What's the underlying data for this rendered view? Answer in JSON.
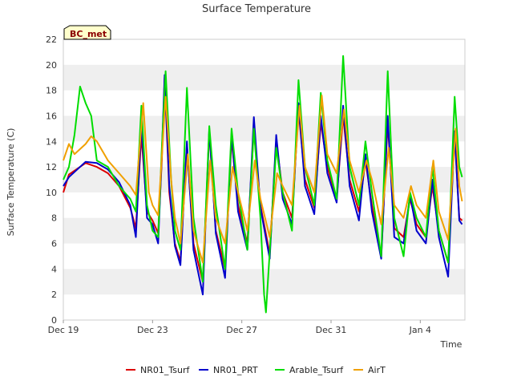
{
  "chart_data": {
    "type": "line",
    "title": "Surface Temperature",
    "xlabel": "Time",
    "ylabel": "Surface Temperature (C)",
    "badge": "BC_met",
    "ylim": [
      0,
      22
    ],
    "yticks": [
      0,
      2,
      4,
      6,
      8,
      10,
      12,
      14,
      16,
      18,
      20,
      22
    ],
    "xlim": [
      "2023-12-19",
      "2024-01-06"
    ],
    "xticks": [
      {
        "date": "2023-12-19",
        "label": "Dec 19"
      },
      {
        "date": "2023-12-23",
        "label": "Dec 23"
      },
      {
        "date": "2023-12-27",
        "label": "Dec 27"
      },
      {
        "date": "2023-12-31",
        "label": "Dec 31"
      },
      {
        "date": "2024-01-04",
        "label": "Jan 4"
      }
    ],
    "grid": "horizontal bands",
    "legend_position": "bottom",
    "colors": {
      "NR01_Tsurf": "#dd0000",
      "NR01_PRT": "#0000cc",
      "Arable_Tsurf": "#00dd00",
      "AirT": "#f0a000",
      "band": "#efefef",
      "badge_bg": "#ffffcc"
    },
    "series": [
      {
        "name": "NR01_Tsurf",
        "points": [
          [
            "2023-12-19T00:00",
            10.0
          ],
          [
            "2023-12-19T06:00",
            11.4
          ],
          [
            "2023-12-20T00:00",
            12.3
          ],
          [
            "2023-12-20T12:00",
            12.0
          ],
          [
            "2023-12-21T00:00",
            11.5
          ],
          [
            "2023-12-21T12:00",
            10.5
          ],
          [
            "2023-12-22T00:00",
            8.8
          ],
          [
            "2023-12-22T06:00",
            7.2
          ],
          [
            "2023-12-22T12:00",
            14.5
          ],
          [
            "2023-12-22T18:00",
            8.5
          ],
          [
            "2023-12-23T00:00",
            7.8
          ],
          [
            "2023-12-23T06:00",
            6.8
          ],
          [
            "2023-12-23T10:00",
            12.5
          ],
          [
            "2023-12-23T13:00",
            19.0
          ],
          [
            "2023-12-23T18:00",
            10.0
          ],
          [
            "2023-12-24T00:00",
            6.0
          ],
          [
            "2023-12-24T06:00",
            4.6
          ],
          [
            "2023-12-24T13:00",
            13.8
          ],
          [
            "2023-12-24T20:00",
            6.0
          ],
          [
            "2023-12-25T06:00",
            3.0
          ],
          [
            "2023-12-25T13:00",
            14.8
          ],
          [
            "2023-12-25T20:00",
            7.0
          ],
          [
            "2023-12-26T06:00",
            4.0
          ],
          [
            "2023-12-26T13:00",
            14.2
          ],
          [
            "2023-12-26T20:00",
            9.0
          ],
          [
            "2023-12-27T06:00",
            6.0
          ],
          [
            "2023-12-27T13:00",
            15.0
          ],
          [
            "2023-12-27T20:00",
            9.0
          ],
          [
            "2023-12-28T06:00",
            5.2
          ],
          [
            "2023-12-28T13:00",
            14.0
          ],
          [
            "2023-12-28T20:00",
            10.0
          ],
          [
            "2023-12-29T06:00",
            8.0
          ],
          [
            "2023-12-29T13:00",
            16.5
          ],
          [
            "2023-12-29T20:00",
            11.0
          ],
          [
            "2023-12-30T06:00",
            8.8
          ],
          [
            "2023-12-30T13:00",
            15.5
          ],
          [
            "2023-12-30T20:00",
            12.0
          ],
          [
            "2023-12-31T06:00",
            9.5
          ],
          [
            "2023-12-31T13:00",
            16.0
          ],
          [
            "2023-12-31T20:00",
            11.0
          ],
          [
            "2024-01-01T06:00",
            8.5
          ],
          [
            "2024-01-01T13:00",
            12.5
          ],
          [
            "2024-01-01T20:00",
            9.0
          ],
          [
            "2024-01-02T06:00",
            5.0
          ],
          [
            "2024-01-02T13:00",
            15.5
          ],
          [
            "2024-01-02T20:00",
            7.2
          ],
          [
            "2024-01-03T06:00",
            6.5
          ],
          [
            "2024-01-03T13:00",
            9.5
          ],
          [
            "2024-01-03T20:00",
            7.5
          ],
          [
            "2024-01-04T06:00",
            6.5
          ],
          [
            "2024-01-04T13:00",
            10.5
          ],
          [
            "2024-01-04T20:00",
            7.0
          ],
          [
            "2024-01-05T06:00",
            4.5
          ],
          [
            "2024-01-05T13:00",
            14.5
          ],
          [
            "2024-01-05T18:00",
            8.0
          ],
          [
            "2024-01-05T21:00",
            7.8
          ]
        ]
      },
      {
        "name": "NR01_PRT",
        "points": [
          [
            "2023-12-19T00:00",
            10.5
          ],
          [
            "2023-12-19T06:00",
            11.2
          ],
          [
            "2023-12-20T00:00",
            12.4
          ],
          [
            "2023-12-20T12:00",
            12.3
          ],
          [
            "2023-12-21T00:00",
            11.8
          ],
          [
            "2023-12-21T12:00",
            10.8
          ],
          [
            "2023-12-22T00:00",
            9.0
          ],
          [
            "2023-12-22T06:00",
            6.5
          ],
          [
            "2023-12-22T12:00",
            15.5
          ],
          [
            "2023-12-22T18:00",
            8.0
          ],
          [
            "2023-12-23T00:00",
            7.5
          ],
          [
            "2023-12-23T06:00",
            6.0
          ],
          [
            "2023-12-23T10:00",
            13.0
          ],
          [
            "2023-12-23T13:00",
            19.2
          ],
          [
            "2023-12-23T18:00",
            10.5
          ],
          [
            "2023-12-24T00:00",
            5.8
          ],
          [
            "2023-12-24T06:00",
            4.3
          ],
          [
            "2023-12-24T13:00",
            14.0
          ],
          [
            "2023-12-24T20:00",
            5.5
          ],
          [
            "2023-12-25T06:00",
            2.0
          ],
          [
            "2023-12-25T13:00",
            15.0
          ],
          [
            "2023-12-25T20:00",
            6.8
          ],
          [
            "2023-12-26T06:00",
            3.3
          ],
          [
            "2023-12-26T13:00",
            14.6
          ],
          [
            "2023-12-26T20:00",
            8.5
          ],
          [
            "2023-12-27T06:00",
            5.5
          ],
          [
            "2023-12-27T13:00",
            15.9
          ],
          [
            "2023-12-27T20:00",
            8.8
          ],
          [
            "2023-12-28T06:00",
            4.8
          ],
          [
            "2023-12-28T13:00",
            14.5
          ],
          [
            "2023-12-28T20:00",
            9.5
          ],
          [
            "2023-12-29T06:00",
            7.5
          ],
          [
            "2023-12-29T13:00",
            17.0
          ],
          [
            "2023-12-29T20:00",
            10.5
          ],
          [
            "2023-12-30T06:00",
            8.3
          ],
          [
            "2023-12-30T13:00",
            16.0
          ],
          [
            "2023-12-30T20:00",
            11.5
          ],
          [
            "2023-12-31T06:00",
            9.2
          ],
          [
            "2023-12-31T13:00",
            16.8
          ],
          [
            "2023-12-31T20:00",
            10.5
          ],
          [
            "2024-01-01T06:00",
            7.8
          ],
          [
            "2024-01-01T13:00",
            13.0
          ],
          [
            "2024-01-01T20:00",
            8.5
          ],
          [
            "2024-01-02T06:00",
            4.8
          ],
          [
            "2024-01-02T13:00",
            16.0
          ],
          [
            "2024-01-02T20:00",
            6.5
          ],
          [
            "2024-01-03T06:00",
            6.0
          ],
          [
            "2024-01-03T13:00",
            9.8
          ],
          [
            "2024-01-03T20:00",
            7.0
          ],
          [
            "2024-01-04T06:00",
            6.0
          ],
          [
            "2024-01-04T13:00",
            11.0
          ],
          [
            "2024-01-04T20:00",
            6.5
          ],
          [
            "2024-01-05T06:00",
            3.4
          ],
          [
            "2024-01-05T13:00",
            14.8
          ],
          [
            "2024-01-05T18:00",
            7.8
          ],
          [
            "2024-01-05T21:00",
            7.5
          ]
        ]
      },
      {
        "name": "Arable_Tsurf",
        "points": [
          [
            "2023-12-19T00:00",
            11.0
          ],
          [
            "2023-12-19T06:00",
            12.0
          ],
          [
            "2023-12-19T12:00",
            14.5
          ],
          [
            "2023-12-19T18:00",
            18.3
          ],
          [
            "2023-12-20T00:00",
            17.0
          ],
          [
            "2023-12-20T06:00",
            16.0
          ],
          [
            "2023-12-20T12:00",
            12.5
          ],
          [
            "2023-12-21T00:00",
            12.0
          ],
          [
            "2023-12-21T12:00",
            10.5
          ],
          [
            "2023-12-22T00:00",
            9.5
          ],
          [
            "2023-12-22T06:00",
            8.5
          ],
          [
            "2023-12-22T12:00",
            16.8
          ],
          [
            "2023-12-22T18:00",
            9.0
          ],
          [
            "2023-12-23T00:00",
            7.0
          ],
          [
            "2023-12-23T06:00",
            6.5
          ],
          [
            "2023-12-23T10:00",
            13.5
          ],
          [
            "2023-12-23T14:00",
            19.5
          ],
          [
            "2023-12-23T20:00",
            11.0
          ],
          [
            "2023-12-24T00:00",
            7.0
          ],
          [
            "2023-12-24T06:00",
            5.5
          ],
          [
            "2023-12-24T13:00",
            18.2
          ],
          [
            "2023-12-24T20:00",
            8.0
          ],
          [
            "2023-12-25T06:00",
            3.0
          ],
          [
            "2023-12-25T13:00",
            15.2
          ],
          [
            "2023-12-25T20:00",
            9.0
          ],
          [
            "2023-12-26T06:00",
            4.0
          ],
          [
            "2023-12-26T13:00",
            15.0
          ],
          [
            "2023-12-26T20:00",
            10.0
          ],
          [
            "2023-12-27T06:00",
            5.5
          ],
          [
            "2023-12-27T13:00",
            15.0
          ],
          [
            "2023-12-27T20:00",
            8.0
          ],
          [
            "2023-12-28T00:00",
            2.0
          ],
          [
            "2023-12-28T02:00",
            0.6
          ],
          [
            "2023-12-28T13:00",
            13.5
          ],
          [
            "2023-12-28T20:00",
            10.0
          ],
          [
            "2023-12-29T06:00",
            7.0
          ],
          [
            "2023-12-29T13:00",
            18.8
          ],
          [
            "2023-12-29T20:00",
            12.0
          ],
          [
            "2023-12-30T06:00",
            9.0
          ],
          [
            "2023-12-30T13:00",
            17.8
          ],
          [
            "2023-12-30T20:00",
            12.5
          ],
          [
            "2023-12-31T06:00",
            9.5
          ],
          [
            "2023-12-31T13:00",
            20.7
          ],
          [
            "2023-12-31T20:00",
            12.0
          ],
          [
            "2024-01-01T06:00",
            9.0
          ],
          [
            "2024-01-01T13:00",
            14.0
          ],
          [
            "2024-01-01T20:00",
            10.0
          ],
          [
            "2024-01-02T06:00",
            5.0
          ],
          [
            "2024-01-02T13:00",
            19.5
          ],
          [
            "2024-01-02T20:00",
            8.0
          ],
          [
            "2024-01-03T06:00",
            5.0
          ],
          [
            "2024-01-03T13:00",
            10.0
          ],
          [
            "2024-01-03T20:00",
            8.0
          ],
          [
            "2024-01-04T06:00",
            6.5
          ],
          [
            "2024-01-04T13:00",
            12.0
          ],
          [
            "2024-01-04T20:00",
            7.0
          ],
          [
            "2024-01-05T06:00",
            4.5
          ],
          [
            "2024-01-05T13:00",
            17.5
          ],
          [
            "2024-01-05T18:00",
            12.0
          ],
          [
            "2024-01-05T21:00",
            11.2
          ]
        ]
      },
      {
        "name": "AirT",
        "points": [
          [
            "2023-12-19T00:00",
            12.5
          ],
          [
            "2023-12-19T06:00",
            13.8
          ],
          [
            "2023-12-19T12:00",
            13.0
          ],
          [
            "2023-12-20T00:00",
            13.8
          ],
          [
            "2023-12-20T06:00",
            14.4
          ],
          [
            "2023-12-20T12:00",
            14.0
          ],
          [
            "2023-12-21T00:00",
            12.5
          ],
          [
            "2023-12-21T12:00",
            11.5
          ],
          [
            "2023-12-22T00:00",
            10.5
          ],
          [
            "2023-12-22T06:00",
            9.8
          ],
          [
            "2023-12-22T14:00",
            17.0
          ],
          [
            "2023-12-22T20:00",
            10.0
          ],
          [
            "2023-12-23T00:00",
            9.0
          ],
          [
            "2023-12-23T06:00",
            8.2
          ],
          [
            "2023-12-23T14:00",
            17.5
          ],
          [
            "2023-12-23T20:00",
            11.0
          ],
          [
            "2023-12-24T00:00",
            8.0
          ],
          [
            "2023-12-24T06:00",
            6.0
          ],
          [
            "2023-12-24T14:00",
            13.0
          ],
          [
            "2023-12-24T20:00",
            7.0
          ],
          [
            "2023-12-25T06:00",
            4.5
          ],
          [
            "2023-12-25T14:00",
            12.5
          ],
          [
            "2023-12-25T20:00",
            8.0
          ],
          [
            "2023-12-26T06:00",
            6.0
          ],
          [
            "2023-12-26T14:00",
            12.0
          ],
          [
            "2023-12-26T20:00",
            10.0
          ],
          [
            "2023-12-27T06:00",
            7.0
          ],
          [
            "2023-12-27T14:00",
            12.5
          ],
          [
            "2023-12-27T20:00",
            9.5
          ],
          [
            "2023-12-28T06:00",
            6.5
          ],
          [
            "2023-12-28T14:00",
            11.5
          ],
          [
            "2023-12-28T20:00",
            10.5
          ],
          [
            "2023-12-29T06:00",
            9.0
          ],
          [
            "2023-12-29T14:00",
            16.8
          ],
          [
            "2023-12-29T20:00",
            12.0
          ],
          [
            "2023-12-30T06:00",
            10.0
          ],
          [
            "2023-12-30T14:00",
            17.6
          ],
          [
            "2023-12-30T20:00",
            13.0
          ],
          [
            "2023-12-31T06:00",
            11.5
          ],
          [
            "2023-12-31T14:00",
            16.5
          ],
          [
            "2023-12-31T20:00",
            12.5
          ],
          [
            "2024-01-01T06:00",
            10.0
          ],
          [
            "2024-01-01T14:00",
            12.5
          ],
          [
            "2024-01-01T20:00",
            11.0
          ],
          [
            "2024-01-02T06:00",
            7.5
          ],
          [
            "2024-01-02T14:00",
            13.5
          ],
          [
            "2024-01-02T20:00",
            9.0
          ],
          [
            "2024-01-03T06:00",
            8.0
          ],
          [
            "2024-01-03T14:00",
            10.5
          ],
          [
            "2024-01-03T20:00",
            9.0
          ],
          [
            "2024-01-04T06:00",
            8.0
          ],
          [
            "2024-01-04T14:00",
            12.5
          ],
          [
            "2024-01-04T20:00",
            8.5
          ],
          [
            "2024-01-05T06:00",
            6.3
          ],
          [
            "2024-01-05T14:00",
            15.0
          ],
          [
            "2024-01-05T18:00",
            10.5
          ],
          [
            "2024-01-05T21:00",
            9.3
          ]
        ]
      }
    ]
  }
}
